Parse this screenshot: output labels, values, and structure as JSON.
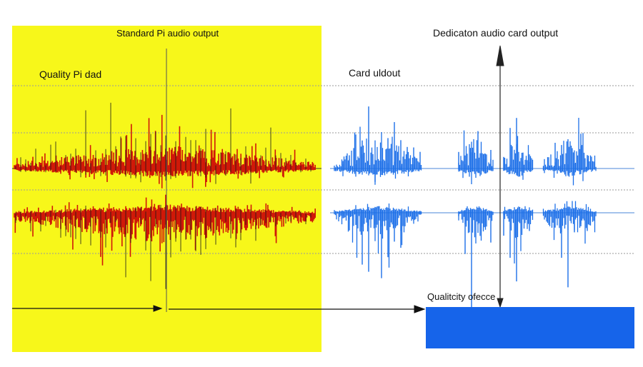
{
  "left_panel": {
    "title": "Standard Pi audio output",
    "label": "Quality Pi dad",
    "background": "#f7f71a",
    "waveform_color": "#d01808",
    "outline_color": "#1a1a1a"
  },
  "right_panel": {
    "title": "Dedicaton audio card output",
    "label": "Card uldout",
    "waveform_color": "#1c6fe8"
  },
  "quality_box": {
    "label": "Qualitcity ofecce",
    "color": "#1664ea"
  },
  "arrows": {
    "bottom_arrow": "right-pointing arrow from left panel to quality box",
    "right_axis_arrow": "vertical double-headed axis in right panel"
  }
}
